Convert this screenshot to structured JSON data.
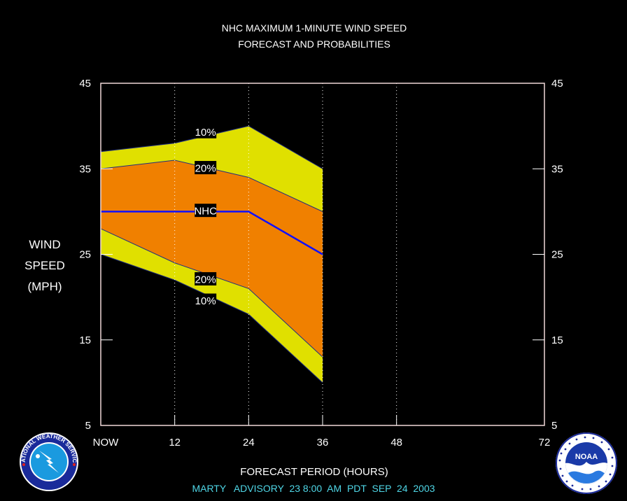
{
  "chart_data": {
    "type": "area",
    "title": "NHC MAXIMUM 1-MINUTE WIND SPEED",
    "subtitle": "FORECAST AND PROBABILITIES",
    "ylabel_lines": [
      "WIND",
      "SPEED",
      "(MPH)"
    ],
    "xlabel": "FORECAST PERIOD (HOURS)",
    "advisory": "MARTY   ADVISORY  23 8:00  AM  PDT  SEP  24  2003",
    "x_tick_labels": [
      "NOW",
      "12",
      "24",
      "36",
      "48",
      "72"
    ],
    "x_tick_values": [
      0,
      12,
      24,
      36,
      48,
      72
    ],
    "y_ticks": [
      5,
      15,
      25,
      35,
      45
    ],
    "xlim": [
      0,
      72
    ],
    "ylim": [
      5,
      45
    ],
    "x": [
      0,
      12,
      24,
      36
    ],
    "series": [
      {
        "name": "10%",
        "upper": [
          37,
          38,
          40,
          35
        ],
        "lower": [
          25,
          22,
          18,
          10
        ]
      },
      {
        "name": "20%",
        "upper": [
          35,
          36,
          34,
          30
        ],
        "lower": [
          28,
          24,
          21,
          13
        ]
      },
      {
        "name": "NHC",
        "values": [
          30,
          30,
          30,
          25
        ]
      }
    ],
    "band_labels": [
      {
        "text": "10%",
        "x": 17,
        "y": 39.3
      },
      {
        "text": "20%",
        "x": 17,
        "y": 35.1
      },
      {
        "text": "NHC",
        "x": 17,
        "y": 30.1
      },
      {
        "text": "20%",
        "x": 17,
        "y": 22.1
      },
      {
        "text": "10%",
        "x": 17,
        "y": 19.6
      }
    ],
    "colors": {
      "outer_band": "#e0e000",
      "inner_band": "#f08000",
      "nhc_line": "#1010ff",
      "frame": "#f0d8d8",
      "advisory_text": "#4fd6e6"
    },
    "grid": "vertical dotted at 12, 24, 36, 48"
  },
  "logos": {
    "nws_text": "NATIONAL WEATHER SERVICE",
    "noaa_text": "NOAA"
  }
}
